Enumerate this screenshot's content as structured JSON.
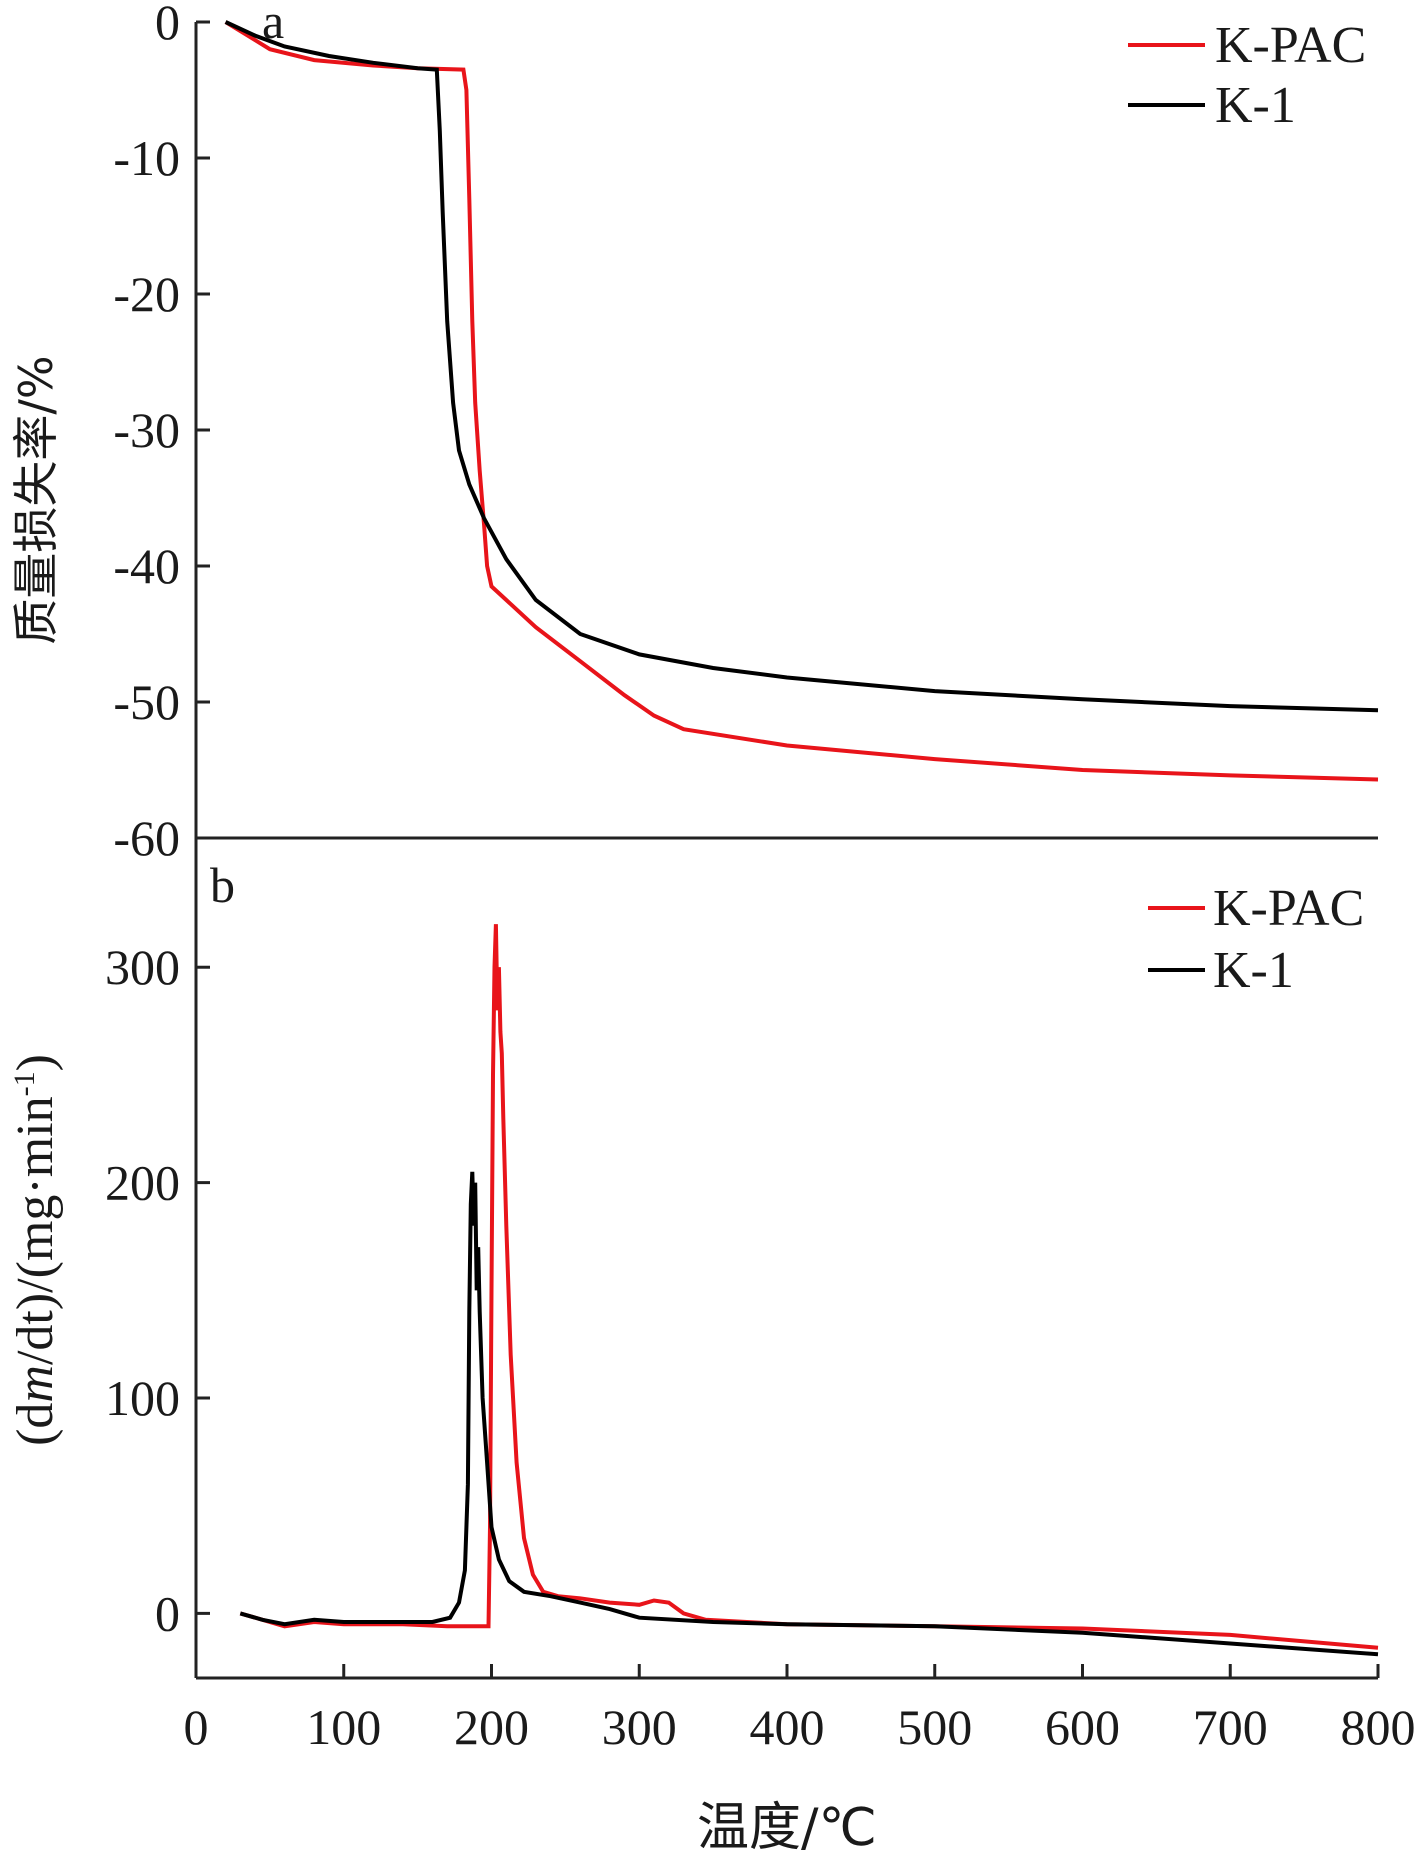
{
  "chart_data": [
    {
      "panel": "a",
      "type": "line",
      "ylabel": "质量损失率/%",
      "xlim": [
        0,
        800
      ],
      "ylim": [
        -60,
        0
      ],
      "yticks": [
        0,
        -10,
        -20,
        -30,
        -40,
        -50,
        -60
      ],
      "legend": "top-right",
      "series": [
        {
          "name": "K-PAC",
          "color": "#e8141a",
          "points": [
            [
              20,
              0
            ],
            [
              35,
              -1
            ],
            [
              50,
              -2
            ],
            [
              80,
              -2.8
            ],
            [
              120,
              -3.2
            ],
            [
              150,
              -3.4
            ],
            [
              181,
              -3.5
            ],
            [
              183,
              -5
            ],
            [
              185,
              -13
            ],
            [
              187,
              -22
            ],
            [
              189,
              -28
            ],
            [
              192,
              -33
            ],
            [
              195,
              -37
            ],
            [
              197,
              -40
            ],
            [
              200,
              -41.5
            ],
            [
              210,
              -42.5
            ],
            [
              230,
              -44.5
            ],
            [
              260,
              -47
            ],
            [
              290,
              -49.5
            ],
            [
              310,
              -51
            ],
            [
              330,
              -52
            ],
            [
              400,
              -53.2
            ],
            [
              500,
              -54.2
            ],
            [
              600,
              -55
            ],
            [
              700,
              -55.4
            ],
            [
              800,
              -55.7
            ]
          ]
        },
        {
          "name": "K-1",
          "color": "#000000",
          "points": [
            [
              20,
              0
            ],
            [
              40,
              -1
            ],
            [
              60,
              -1.8
            ],
            [
              90,
              -2.5
            ],
            [
              120,
              -3
            ],
            [
              150,
              -3.4
            ],
            [
              163,
              -3.5
            ],
            [
              165,
              -8
            ],
            [
              167,
              -14
            ],
            [
              170,
              -22
            ],
            [
              174,
              -28
            ],
            [
              178,
              -31.5
            ],
            [
              185,
              -34
            ],
            [
              195,
              -36.5
            ],
            [
              210,
              -39.5
            ],
            [
              230,
              -42.5
            ],
            [
              260,
              -45
            ],
            [
              300,
              -46.5
            ],
            [
              350,
              -47.5
            ],
            [
              400,
              -48.2
            ],
            [
              500,
              -49.2
            ],
            [
              600,
              -49.8
            ],
            [
              700,
              -50.3
            ],
            [
              800,
              -50.6
            ]
          ]
        }
      ]
    },
    {
      "panel": "b",
      "type": "line",
      "xlabel": "温度/℃",
      "ylabel": "(dm/dt)/(mg·min-1)",
      "ylabel_parts": {
        "a": "(d",
        "m": "m",
        "b": "/dt)/(mg·min",
        "sup": "-1",
        "c": ")"
      },
      "xlim": [
        0,
        800
      ],
      "ylim": [
        -30,
        360
      ],
      "xticks": [
        0,
        100,
        200,
        300,
        400,
        500,
        600,
        700,
        800
      ],
      "yticks": [
        0,
        100,
        200,
        300
      ],
      "legend": "top-right",
      "series": [
        {
          "name": "K-PAC",
          "color": "#e8141a",
          "points": [
            [
              30,
              0
            ],
            [
              45,
              -3
            ],
            [
              60,
              -6
            ],
            [
              80,
              -4
            ],
            [
              100,
              -5
            ],
            [
              140,
              -5
            ],
            [
              170,
              -6
            ],
            [
              198,
              -6
            ],
            [
              199,
              40
            ],
            [
              200,
              150
            ],
            [
              201,
              250
            ],
            [
              202,
              300
            ],
            [
              203,
              320
            ],
            [
              204,
              280
            ],
            [
              205,
              300
            ],
            [
              206,
              270
            ],
            [
              207,
              260
            ],
            [
              208,
              230
            ],
            [
              210,
              180
            ],
            [
              213,
              120
            ],
            [
              217,
              70
            ],
            [
              222,
              35
            ],
            [
              228,
              18
            ],
            [
              235,
              10
            ],
            [
              245,
              8
            ],
            [
              260,
              7
            ],
            [
              280,
              5
            ],
            [
              300,
              4
            ],
            [
              310,
              6
            ],
            [
              320,
              5
            ],
            [
              330,
              0
            ],
            [
              345,
              -3
            ],
            [
              400,
              -5
            ],
            [
              500,
              -6
            ],
            [
              600,
              -7
            ],
            [
              700,
              -10
            ],
            [
              800,
              -16
            ]
          ]
        },
        {
          "name": "K-1",
          "color": "#000000",
          "points": [
            [
              30,
              0
            ],
            [
              45,
              -3
            ],
            [
              60,
              -5
            ],
            [
              80,
              -3
            ],
            [
              100,
              -4
            ],
            [
              140,
              -4
            ],
            [
              160,
              -4
            ],
            [
              172,
              -2
            ],
            [
              178,
              5
            ],
            [
              182,
              20
            ],
            [
              184,
              60
            ],
            [
              185,
              140
            ],
            [
              186,
              190
            ],
            [
              187,
              205
            ],
            [
              188,
              180
            ],
            [
              189,
              200
            ],
            [
              190,
              150
            ],
            [
              191,
              170
            ],
            [
              192,
              140
            ],
            [
              194,
              100
            ],
            [
              197,
              70
            ],
            [
              200,
              40
            ],
            [
              205,
              25
            ],
            [
              212,
              15
            ],
            [
              222,
              10
            ],
            [
              240,
              8
            ],
            [
              260,
              5
            ],
            [
              280,
              2
            ],
            [
              300,
              -2
            ],
            [
              350,
              -4
            ],
            [
              400,
              -5
            ],
            [
              500,
              -6
            ],
            [
              600,
              -9
            ],
            [
              700,
              -14
            ],
            [
              800,
              -19
            ]
          ]
        }
      ]
    }
  ]
}
